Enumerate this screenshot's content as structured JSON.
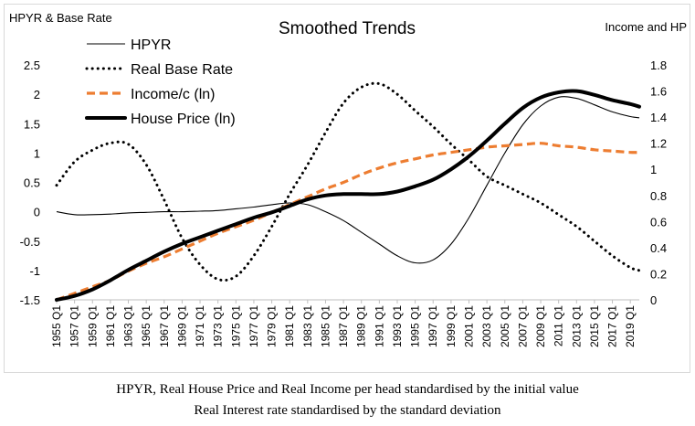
{
  "chart_data": {
    "type": "line",
    "title": "Smoothed Trends",
    "ylabel_left": "HPYR & Base Rate",
    "ylabel_right": "Income and HP",
    "ylim_left": [
      -1.5,
      2.5
    ],
    "ylim_right": [
      0,
      1.8
    ],
    "yticks_left": [
      "-1.5",
      "-1",
      "-0.5",
      "0",
      "0.5",
      "1",
      "1.5",
      "2",
      "2.5"
    ],
    "yticks_right": [
      "0",
      "0.2",
      "0.4",
      "0.6",
      "0.8",
      "1",
      "1.2",
      "1.4",
      "1.6",
      "1.8"
    ],
    "xticks": [
      "1955 Q1",
      "1957 Q1",
      "1959 Q1",
      "1961 Q1",
      "1963 Q1",
      "1965 Q1",
      "1967 Q1",
      "1969 Q1",
      "1971 Q1",
      "1973 Q1",
      "1975 Q1",
      "1977 Q1",
      "1979 Q1",
      "1981 Q1",
      "1983 Q1",
      "1985 Q1",
      "1987 Q1",
      "1989 Q1",
      "1991 Q1",
      "1993 Q1",
      "1995 Q1",
      "1997 Q1",
      "1999 Q1",
      "2001 Q1",
      "2003 Q1",
      "2005 Q1",
      "2007 Q1",
      "2009 Q1",
      "2011 Q1",
      "2013 Q1",
      "2015 Q1",
      "2017 Q1",
      "2019 Q1"
    ],
    "x_years": [
      1955,
      1957,
      1959,
      1961,
      1963,
      1965,
      1967,
      1969,
      1971,
      1973,
      1975,
      1977,
      1979,
      1981,
      1983,
      1985,
      1987,
      1989,
      1991,
      1993,
      1995,
      1997,
      1999,
      2001,
      2003,
      2005,
      2007,
      2009,
      2011,
      2013,
      2015,
      2017,
      2019,
      2020
    ],
    "legend_position": "top-left",
    "series": [
      {
        "name": "HPYR",
        "axis": "left",
        "style": "thin-solid",
        "color": "#000000",
        "values": [
          0.0,
          -0.05,
          -0.05,
          -0.04,
          -0.02,
          -0.01,
          0.0,
          0.0,
          0.01,
          0.02,
          0.05,
          0.08,
          0.12,
          0.15,
          0.12,
          0.0,
          -0.15,
          -0.35,
          -0.55,
          -0.75,
          -0.87,
          -0.82,
          -0.55,
          -0.1,
          0.45,
          1.0,
          1.48,
          1.8,
          1.95,
          1.93,
          1.82,
          1.7,
          1.62,
          1.6
        ]
      },
      {
        "name": "Real Base Rate",
        "axis": "left",
        "style": "dotted",
        "color": "#000000",
        "values": [
          0.45,
          0.85,
          1.05,
          1.17,
          1.15,
          0.8,
          0.2,
          -0.45,
          -0.9,
          -1.15,
          -1.1,
          -0.75,
          -0.25,
          0.3,
          0.8,
          1.35,
          1.85,
          2.12,
          2.18,
          2.0,
          1.72,
          1.45,
          1.15,
          0.88,
          0.6,
          0.45,
          0.3,
          0.15,
          -0.05,
          -0.25,
          -0.5,
          -0.75,
          -0.95,
          -1.0
        ]
      },
      {
        "name": "Income/c (ln)",
        "axis": "right",
        "style": "dashed",
        "color": "#ED7D31",
        "values": [
          0.0,
          0.05,
          0.1,
          0.15,
          0.22,
          0.28,
          0.33,
          0.39,
          0.45,
          0.51,
          0.56,
          0.61,
          0.67,
          0.73,
          0.79,
          0.85,
          0.9,
          0.96,
          1.01,
          1.05,
          1.08,
          1.11,
          1.13,
          1.15,
          1.17,
          1.18,
          1.19,
          1.2,
          1.18,
          1.17,
          1.15,
          1.14,
          1.13,
          1.13
        ]
      },
      {
        "name": "House Price (ln)",
        "axis": "right",
        "style": "thick-solid",
        "color": "#000000",
        "values": [
          0.0,
          0.03,
          0.08,
          0.15,
          0.23,
          0.3,
          0.37,
          0.43,
          0.48,
          0.53,
          0.58,
          0.63,
          0.67,
          0.72,
          0.77,
          0.8,
          0.81,
          0.81,
          0.81,
          0.83,
          0.87,
          0.92,
          1.0,
          1.1,
          1.22,
          1.35,
          1.47,
          1.55,
          1.59,
          1.6,
          1.57,
          1.53,
          1.5,
          1.48
        ]
      }
    ]
  },
  "notes": {
    "line1": "HPYR, Real House Price and Real Income per head standardised by the initial value",
    "line2": "Real Interest rate standardised by the standard deviation"
  }
}
